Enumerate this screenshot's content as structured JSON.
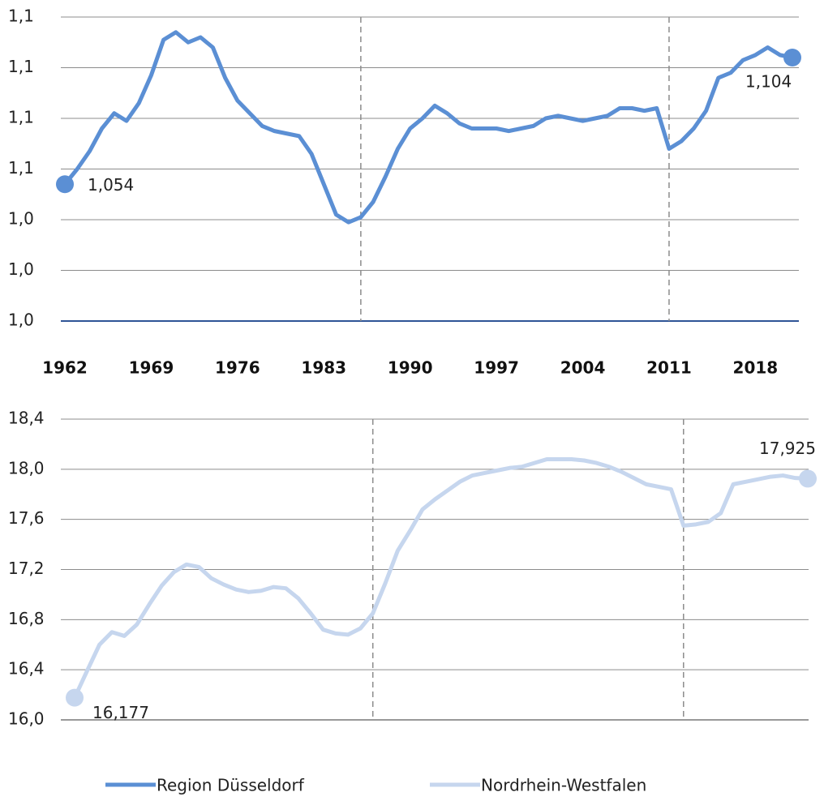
{
  "chart_data": [
    {
      "type": "line",
      "x": [
        1962,
        1963,
        1964,
        1965,
        1966,
        1967,
        1968,
        1969,
        1970,
        1971,
        1972,
        1973,
        1974,
        1975,
        1976,
        1977,
        1978,
        1979,
        1980,
        1981,
        1982,
        1983,
        1984,
        1985,
        1986,
        1987,
        1988,
        1989,
        1990,
        1991,
        1992,
        1993,
        1994,
        1995,
        1996,
        1997,
        1998,
        1999,
        2000,
        2001,
        2002,
        2003,
        2004,
        2005,
        2006,
        2007,
        2008,
        2009,
        2010,
        2011,
        2012,
        2013,
        2014,
        2015,
        2016,
        2017,
        2018,
        2019,
        2020,
        2021
      ],
      "series": [
        {
          "name": "Region Düsseldorf",
          "color": "#5b8fd4",
          "values": [
            1.054,
            1.06,
            1.067,
            1.076,
            1.082,
            1.079,
            1.086,
            1.097,
            1.111,
            1.114,
            1.11,
            1.112,
            1.108,
            1.096,
            1.087,
            1.082,
            1.077,
            1.075,
            1.074,
            1.073,
            1.066,
            1.054,
            1.042,
            1.039,
            1.041,
            1.047,
            1.057,
            1.068,
            1.076,
            1.08,
            1.085,
            1.082,
            1.078,
            1.076,
            1.076,
            1.076,
            1.075,
            1.076,
            1.077,
            1.08,
            1.081,
            1.08,
            1.079,
            1.08,
            1.081,
            1.084,
            1.084,
            1.083,
            1.084,
            1.068,
            1.071,
            1.076,
            1.083,
            1.096,
            1.098,
            1.103,
            1.105,
            1.108,
            1.105,
            1.104
          ],
          "value_labels": [
            "1,054",
            null,
            null,
            null,
            null,
            null,
            null,
            null,
            null,
            null,
            null,
            null,
            null,
            null,
            null,
            null,
            null,
            null,
            null,
            null,
            null,
            null,
            null,
            null,
            null,
            null,
            null,
            null,
            null,
            null,
            null,
            null,
            null,
            null,
            null,
            null,
            null,
            null,
            null,
            null,
            null,
            null,
            null,
            null,
            null,
            null,
            null,
            null,
            null,
            null,
            null,
            null,
            null,
            null,
            null,
            null,
            null,
            null,
            null,
            "1,104"
          ]
        }
      ],
      "xlim": [
        1962,
        2021
      ],
      "xticks": [
        1962,
        1969,
        1976,
        1983,
        1990,
        1997,
        2004,
        2011,
        2018
      ],
      "ylim": [
        1.0,
        1.12
      ],
      "yticks": [
        {
          "value": 1.0,
          "label": "1,0"
        },
        {
          "value": 1.02,
          "label": "1,0"
        },
        {
          "value": 1.04,
          "label": "1,0"
        },
        {
          "value": 1.06,
          "label": "1,1"
        },
        {
          "value": 1.08,
          "label": "1,1"
        },
        {
          "value": 1.1,
          "label": "1,1"
        },
        {
          "value": 1.12,
          "label": "1,1"
        }
      ],
      "vlines": [
        1986,
        2011
      ],
      "grid": true
    },
    {
      "type": "line",
      "x": [
        1962,
        1963,
        1964,
        1965,
        1966,
        1967,
        1968,
        1969,
        1970,
        1971,
        1972,
        1973,
        1974,
        1975,
        1976,
        1977,
        1978,
        1979,
        1980,
        1981,
        1982,
        1983,
        1984,
        1985,
        1986,
        1987,
        1988,
        1989,
        1990,
        1991,
        1992,
        1993,
        1994,
        1995,
        1996,
        1997,
        1998,
        1999,
        2000,
        2001,
        2002,
        2003,
        2004,
        2005,
        2006,
        2007,
        2008,
        2009,
        2010,
        2011,
        2012,
        2013,
        2014,
        2015,
        2016,
        2017,
        2018,
        2019,
        2020,
        2021
      ],
      "series": [
        {
          "name": "Nordrhein-Westfalen",
          "color": "#c6d6ee",
          "values": [
            16.177,
            16.39,
            16.6,
            16.7,
            16.67,
            16.76,
            16.92,
            17.07,
            17.18,
            17.24,
            17.22,
            17.13,
            17.08,
            17.04,
            17.02,
            17.03,
            17.06,
            17.05,
            16.97,
            16.85,
            16.72,
            16.69,
            16.68,
            16.73,
            16.85,
            17.09,
            17.35,
            17.51,
            17.68,
            17.76,
            17.83,
            17.9,
            17.95,
            17.97,
            17.99,
            18.01,
            18.02,
            18.05,
            18.08,
            18.08,
            18.08,
            18.07,
            18.05,
            18.02,
            17.98,
            17.93,
            17.88,
            17.86,
            17.84,
            17.55,
            17.56,
            17.58,
            17.65,
            17.88,
            17.9,
            17.92,
            17.94,
            17.95,
            17.93,
            17.925
          ],
          "value_labels": [
            "16,177",
            null,
            null,
            null,
            null,
            null,
            null,
            null,
            null,
            null,
            null,
            null,
            null,
            null,
            null,
            null,
            null,
            null,
            null,
            null,
            null,
            null,
            null,
            null,
            null,
            null,
            null,
            null,
            null,
            null,
            null,
            null,
            null,
            null,
            null,
            null,
            null,
            null,
            null,
            null,
            null,
            null,
            null,
            null,
            null,
            null,
            null,
            null,
            null,
            null,
            null,
            null,
            null,
            null,
            null,
            null,
            null,
            null,
            null,
            "17,925"
          ]
        }
      ],
      "xlim": [
        1962,
        2021
      ],
      "ylim": [
        16.0,
        18.4
      ],
      "yticks": [
        {
          "value": 16.0,
          "label": "16,0"
        },
        {
          "value": 16.4,
          "label": "16,4"
        },
        {
          "value": 16.8,
          "label": "16,8"
        },
        {
          "value": 17.2,
          "label": "17,2"
        },
        {
          "value": 17.6,
          "label": "17,6"
        },
        {
          "value": 18.0,
          "label": "18,0"
        },
        {
          "value": 18.4,
          "label": "18,4"
        }
      ],
      "vlines": [
        1986,
        2011
      ],
      "grid": true
    }
  ]
}
